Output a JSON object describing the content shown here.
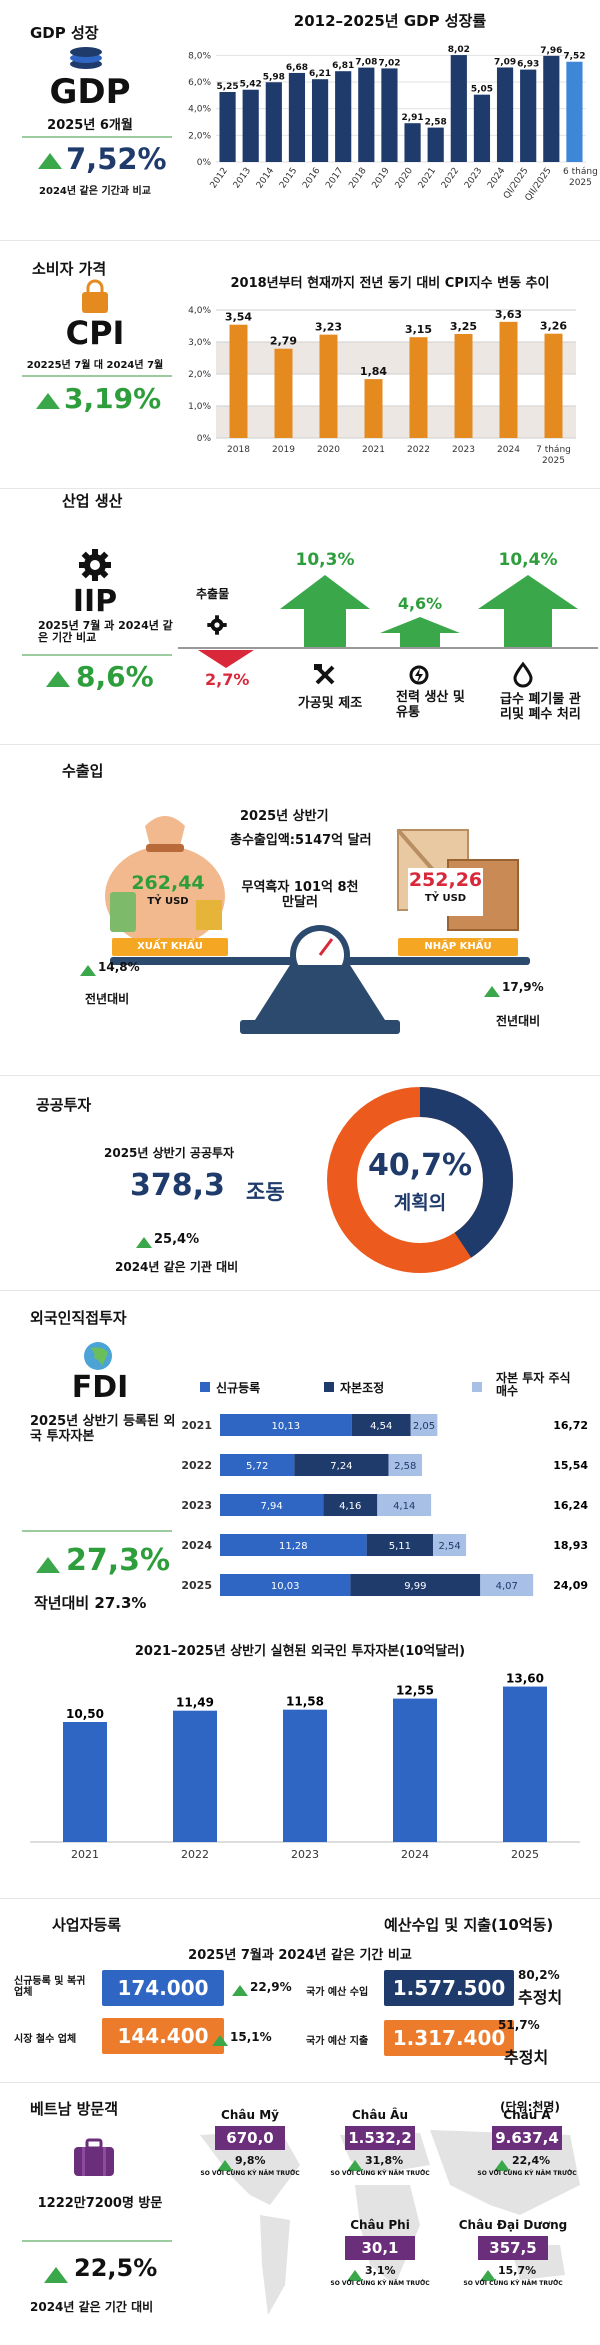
{
  "gdp": {
    "header": "GDP 성장",
    "label": "GDP",
    "period": "2025년 6개월",
    "change": "7,52%",
    "compare": "2024년 같은 기간과 비교"
  },
  "gdp_chart_data": {
    "type": "bar",
    "title": "2012–2025년 GDP 성장률",
    "categories": [
      "2012",
      "2013",
      "2014",
      "2015",
      "2016",
      "2017",
      "2018",
      "2019",
      "2020",
      "2021",
      "2022",
      "2023",
      "2024",
      "QI/2025",
      "QII/2025",
      "6 tháng 2025"
    ],
    "values": [
      5.25,
      5.42,
      5.98,
      6.68,
      6.21,
      6.81,
      7.08,
      7.02,
      2.91,
      2.58,
      8.02,
      5.05,
      7.09,
      6.93,
      7.96,
      7.52
    ],
    "labels": [
      "5,25",
      "5,42",
      "5,98",
      "6,68",
      "6,21",
      "6,81",
      "7,08",
      "7,02",
      "2,91",
      "2,58",
      "8,02",
      "5,05",
      "7,09",
      "6,93",
      "7,96",
      "7,52"
    ],
    "yticks": [
      "0%",
      "2,0%",
      "4,0%",
      "6,0%",
      "8,0%"
    ],
    "ylim": [
      0,
      9
    ],
    "colors": {
      "main": "#1f3b6b",
      "highlight": "#3e86d8"
    }
  },
  "cpi": {
    "header": "소비자 가격",
    "label": "CPI",
    "period": "20225년 7월 대 2024년 7월",
    "change": "3,19%"
  },
  "cpi_chart_data": {
    "type": "bar",
    "title": "2018년부터 현재까지 전년 동기 대비 CPI지수 변동 추이",
    "categories": [
      "2018",
      "2019",
      "2020",
      "2021",
      "2022",
      "2023",
      "2024",
      "7 tháng 2025"
    ],
    "values": [
      3.54,
      2.79,
      3.23,
      1.84,
      3.15,
      3.25,
      3.63,
      3.26
    ],
    "labels": [
      "3,54",
      "2,79",
      "3,23",
      "1,84",
      "3,15",
      "3,25",
      "3,63",
      "3,26"
    ],
    "yticks": [
      "0%",
      "1,0%",
      "2,0%",
      "3,0%",
      "4,0%"
    ],
    "ylim": [
      0,
      4
    ],
    "colors": {
      "bar": "#e58a1f",
      "highlight_label": "#e58a1f"
    }
  },
  "iip": {
    "header": "산업 생산",
    "label": "IIP",
    "period": "2025년 7월 과 2024년 같은 기간 비교",
    "change": "8,6%",
    "sectors": [
      {
        "name": "추출물",
        "value": "2,7%",
        "direction": "down"
      },
      {
        "name": "가공및 제조",
        "value": "10,3%",
        "direction": "up"
      },
      {
        "name": "전력 생산 및 유통",
        "value": "4,6%",
        "direction": "up"
      },
      {
        "name": "급수 폐기물 관리및 폐수 처리",
        "value": "10,4%",
        "direction": "up"
      }
    ]
  },
  "trade": {
    "header": "수출입",
    "period": "2025년 상반기",
    "total": "총수출입액:5147억 달러",
    "surplus": "무역흑자 101억 8천만달러",
    "export_value": "262,44",
    "export_unit": "TỶ USD",
    "export_label": "XUẤT KHẨU",
    "export_change": "14,8%",
    "export_compare": "전년대비",
    "import_value": "252,26",
    "import_unit": "TỶ USD",
    "import_label": "NHẬP KHẨU",
    "import_change": "17,9%",
    "import_compare": "전년대비"
  },
  "public_invest": {
    "header": "공공투자",
    "period": "2025년 상반기 공공투자",
    "value": "378,3",
    "unit": "조동",
    "change": "25,4%",
    "compare": "2024년 같은 기관 대비",
    "donut_pct": "40,7%",
    "donut_label": "계획의",
    "donut_fraction": 0.407,
    "colors": {
      "done": "#1f3b6b",
      "rest": "#ec5a1e"
    }
  },
  "fdi": {
    "header": "외국인직접투자",
    "label": "FDI",
    "desc": "2025년 상반기 등록된 외국 투자자본",
    "change": "27,3%",
    "compare": "작년대비 27.3%",
    "legend": [
      "신규등록",
      "자본조정",
      "자본 투자 주식 매수"
    ],
    "stack_chart_data": {
      "type": "bar",
      "orientation": "horizontal-stacked",
      "categories": [
        "2021",
        "2022",
        "2023",
        "2024",
        "2025"
      ],
      "series": [
        {
          "name": "신규등록",
          "values": [
            10.13,
            5.72,
            7.94,
            11.28,
            10.03
          ],
          "labels": [
            "10,13",
            "5,72",
            "7,94",
            "11,28",
            "10,03"
          ]
        },
        {
          "name": "자본조정",
          "values": [
            4.54,
            7.24,
            4.16,
            5.11,
            9.99
          ],
          "labels": [
            "4,54",
            "7,24",
            "4,16",
            "5,11",
            "9,99"
          ]
        },
        {
          "name": "자본 투자 주식 매수",
          "values": [
            2.05,
            2.58,
            4.14,
            2.54,
            4.07
          ],
          "labels": [
            "2,05",
            "2,58",
            "4,14",
            "2,54",
            "4,07"
          ]
        }
      ],
      "totals": [
        "16,72",
        "15,54",
        "16,24",
        "18,93",
        "24,09"
      ],
      "colors": [
        "#2f66c4",
        "#1f3b6b",
        "#a9c0e6"
      ]
    },
    "realized_chart_data": {
      "type": "bar",
      "title": "2021–2025년 상반기 실현된 외국인 투자자본(10억달러)",
      "categories": [
        "2021",
        "2022",
        "2023",
        "2024",
        "2025"
      ],
      "values": [
        10.5,
        11.49,
        11.58,
        12.55,
        13.6
      ],
      "labels": [
        "10,50",
        "11,49",
        "11,58",
        "12,55",
        "13,60"
      ],
      "ylim": [
        0,
        14
      ],
      "colors": {
        "bar": "#2f66c4"
      }
    }
  },
  "business": {
    "header": "사업자등록",
    "subtitle": "2025년 7월과 2024년 같은 기간 비교",
    "rows": [
      {
        "label": "신규등록 및 복귀 업체",
        "value": "174.000",
        "change": "22,9%"
      },
      {
        "label": "시장 철수 업체",
        "value": "144.400",
        "change": "15,1%"
      }
    ]
  },
  "budget": {
    "header": "예산수입 및 지출(10억동)",
    "rows": [
      {
        "label": "국가 예산 수입",
        "value": "1.577.500",
        "pct": "80,2%",
        "note": "추정치"
      },
      {
        "label": "국가 예산 지출",
        "value": "1.317.400",
        "pct": "51,7%",
        "note": "추정치"
      }
    ]
  },
  "tourism": {
    "header": "베트남 방문객",
    "unit": "(단위:천명)",
    "total": "1222만7200명 방문",
    "change": "22,5%",
    "compare": "2024년 같은 기간 대비",
    "regions": [
      {
        "name": "Châu Mỹ",
        "value": "670,0",
        "change": "9,8%",
        "note": "SO VỚI CÙNG KỲ NĂM TRƯỚC"
      },
      {
        "name": "Châu Âu",
        "value": "1.532,2",
        "change": "31,8%",
        "note": "SO VỚI CÙNG KỲ NĂM TRƯỚC"
      },
      {
        "name": "Châu Á",
        "value": "9.637,4",
        "change": "22,4%",
        "note": "SO VỚI CÙNG KỲ NĂM TRƯỚC"
      },
      {
        "name": "Châu Phi",
        "value": "30,1",
        "change": "3,1%",
        "note": "SO VỚI CÙNG KỲ NĂM TRƯỚC"
      },
      {
        "name": "Châu Đại Dương",
        "value": "357,5",
        "change": "15,7%",
        "note": "SO VỚI CÙNG KỲ NĂM TRƯỚC"
      }
    ]
  }
}
